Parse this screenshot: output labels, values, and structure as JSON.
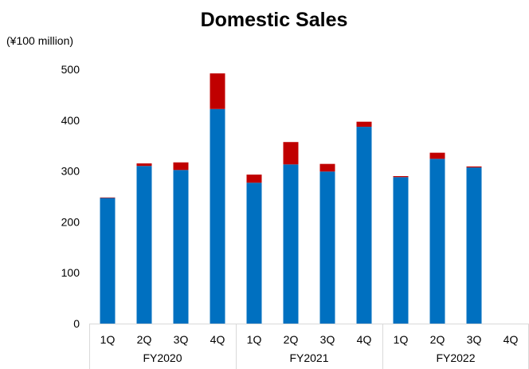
{
  "chart_data": {
    "type": "bar",
    "stacked": true,
    "title": "Domestic Sales",
    "unit_label": "(¥100 million)",
    "ylim": [
      0,
      500
    ],
    "yticks": [
      "0",
      "100",
      "200",
      "300",
      "400",
      "500"
    ],
    "grid": false,
    "legend": "none",
    "categories": [
      "1Q",
      "2Q",
      "3Q",
      "4Q",
      "1Q",
      "2Q",
      "3Q",
      "4Q",
      "1Q",
      "2Q",
      "3Q",
      "4Q"
    ],
    "groups": [
      {
        "label": "FY2020",
        "count": 4
      },
      {
        "label": "FY2021",
        "count": 4
      },
      {
        "label": "FY2022",
        "count": 4
      }
    ],
    "series": [
      {
        "color": "#0070c0",
        "values": [
          247,
          310,
          302,
          422,
          277,
          313,
          299,
          387,
          288,
          324,
          307,
          null
        ]
      },
      {
        "color": "#c00000",
        "values": [
          1,
          5,
          15,
          70,
          16,
          44,
          15,
          10,
          2,
          12,
          2,
          null
        ]
      }
    ]
  }
}
